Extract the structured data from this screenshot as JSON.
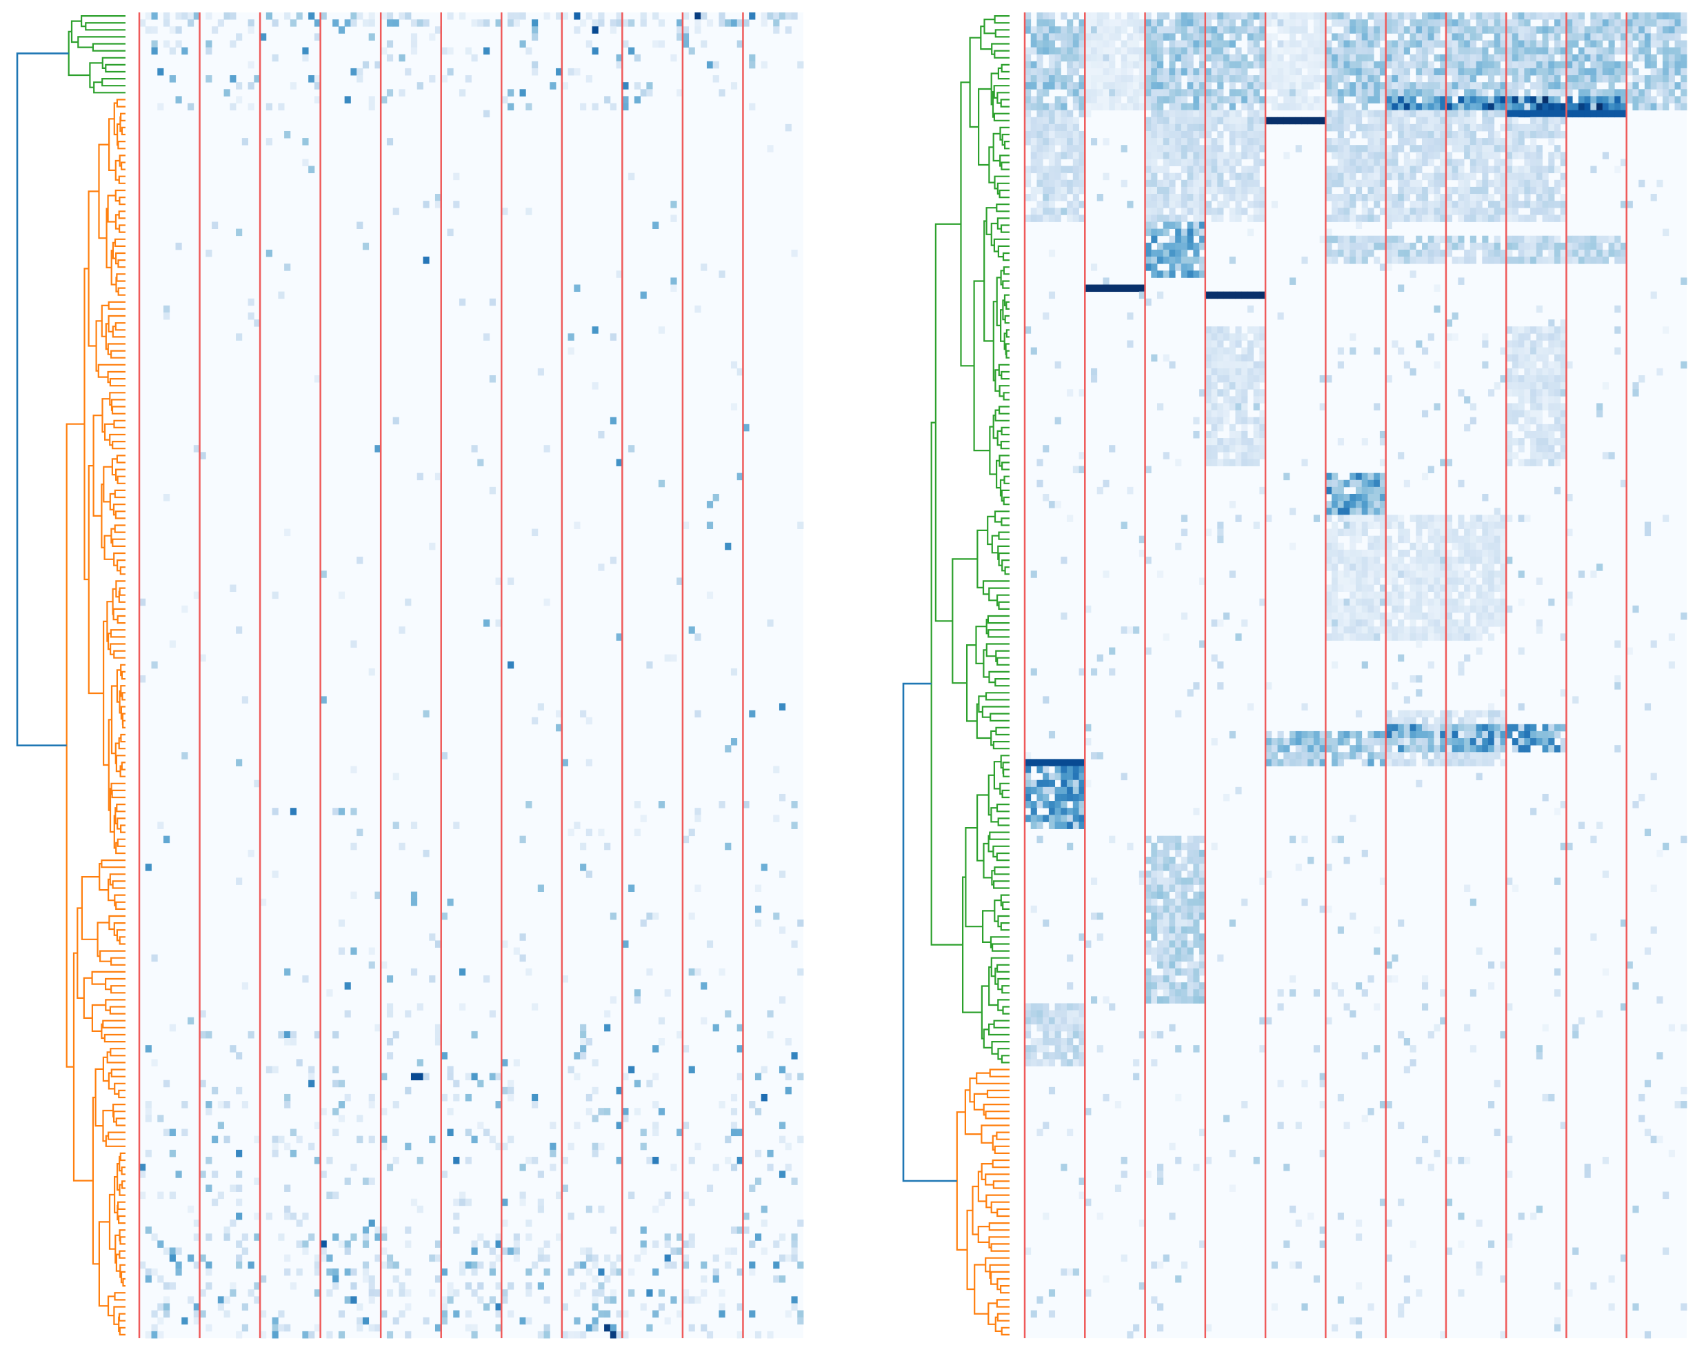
{
  "chart_data": [
    {
      "type": "heatmap",
      "panel": "left",
      "title": "",
      "xlabel": "",
      "ylabel": "",
      "n_rows": 190,
      "n_column_groups": 11,
      "cols_per_group": 10,
      "colormap": [
        "#f7fbff",
        "#deebf7",
        "#c6dbef",
        "#9ecae1",
        "#6baed6",
        "#4292c6",
        "#2171b5",
        "#08519c",
        "#08306b"
      ],
      "value_range": [
        0,
        1
      ],
      "separator_color": "#ef5a5a",
      "dendrogram": {
        "side": "left",
        "clusters": [
          {
            "color": "#2ca02c",
            "row_range": [
              0,
              12
            ]
          },
          {
            "color": "#ff7f0e",
            "row_range": [
              12,
              190
            ]
          }
        ],
        "link_color": "#1f77b4"
      },
      "density_bands": [
        {
          "rows": [
            0,
            2
          ],
          "density": 0.45
        },
        {
          "rows": [
            2,
            14
          ],
          "density": 0.09
        },
        {
          "rows": [
            14,
            113
          ],
          "density": 0.012
        },
        {
          "rows": [
            113,
            145
          ],
          "density": 0.035
        },
        {
          "rows": [
            145,
            175
          ],
          "density": 0.09
        },
        {
          "rows": [
            175,
            190
          ],
          "density": 0.2
        }
      ],
      "strong_cells": [
        {
          "row": 0,
          "col": 92,
          "value": 0.95
        },
        {
          "row": 0,
          "col": 72,
          "value": 0.8
        },
        {
          "row": 2,
          "col": 75,
          "value": 0.9
        },
        {
          "row": 152,
          "col": 45,
          "value": 0.9
        },
        {
          "row": 152,
          "col": 46,
          "value": 0.9
        },
        {
          "row": 188,
          "col": 77,
          "value": 0.95
        },
        {
          "row": 189,
          "col": 78,
          "value": 0.95
        },
        {
          "row": 176,
          "col": 30,
          "value": 0.85
        }
      ]
    },
    {
      "type": "heatmap",
      "panel": "right",
      "title": "",
      "xlabel": "",
      "ylabel": "",
      "n_rows": 190,
      "n_column_groups": 11,
      "cols_per_group": 10,
      "colormap": [
        "#f7fbff",
        "#deebf7",
        "#c6dbef",
        "#9ecae1",
        "#6baed6",
        "#4292c6",
        "#2171b5",
        "#08519c",
        "#08306b"
      ],
      "value_range": [
        0,
        1
      ],
      "separator_color": "#ef5a5a",
      "dendrogram": {
        "side": "left",
        "clusters": [
          {
            "color": "#2ca02c",
            "row_range": [
              0,
              151
            ]
          },
          {
            "color": "#ff7f0e",
            "row_range": [
              151,
              190
            ]
          }
        ],
        "link_color": "#1f77b4"
      },
      "blocks": [
        {
          "rows": [
            0,
            14
          ],
          "groups": [
            0,
            2,
            3,
            5,
            6,
            7,
            8,
            9,
            10
          ],
          "level": 0.35
        },
        {
          "rows": [
            0,
            14
          ],
          "groups": [
            1,
            4
          ],
          "level": 0.12
        },
        {
          "rows": [
            12,
            14
          ],
          "groups": [
            6,
            7,
            8,
            9
          ],
          "level": 0.75
        },
        {
          "rows": [
            14,
            30
          ],
          "groups": [
            0,
            2,
            3,
            5,
            6,
            7,
            8
          ],
          "level": 0.22
        },
        {
          "rows": [
            30,
            38
          ],
          "groups": [
            2
          ],
          "level": 0.5
        },
        {
          "rows": [
            32,
            36
          ],
          "groups": [
            5,
            6,
            7,
            8,
            9
          ],
          "level": 0.28
        },
        {
          "rows": [
            45,
            65
          ],
          "groups": [
            3,
            8
          ],
          "level": 0.18
        },
        {
          "rows": [
            66,
            72
          ],
          "groups": [
            5
          ],
          "level": 0.55
        },
        {
          "rows": [
            72,
            90
          ],
          "groups": [
            5,
            6,
            7
          ],
          "level": 0.15
        },
        {
          "rows": [
            100,
            108
          ],
          "groups": [
            6,
            7
          ],
          "level": 0.2
        },
        {
          "rows": [
            102,
            106
          ],
          "groups": [
            6,
            7,
            8
          ],
          "level": 0.55
        },
        {
          "rows": [
            103,
            108
          ],
          "groups": [
            4,
            5
          ],
          "level": 0.4
        },
        {
          "rows": [
            107,
            117
          ],
          "groups": [
            0
          ],
          "level": 0.55
        },
        {
          "rows": [
            118,
            142
          ],
          "groups": [
            2
          ],
          "level": 0.3
        },
        {
          "rows": [
            142,
            151
          ],
          "groups": [
            0
          ],
          "level": 0.25
        }
      ],
      "strong_rows": [
        {
          "row": 15,
          "groups": [
            4
          ],
          "value": 1.0
        },
        {
          "row": 39,
          "groups": [
            1
          ],
          "value": 1.0
        },
        {
          "row": 40,
          "groups": [
            3
          ],
          "value": 1.0
        },
        {
          "row": 107,
          "groups": [
            0
          ],
          "value": 0.9
        },
        {
          "row": 14,
          "groups": [
            8,
            9
          ],
          "value": 0.85
        }
      ],
      "background_density": 0.03
    }
  ]
}
